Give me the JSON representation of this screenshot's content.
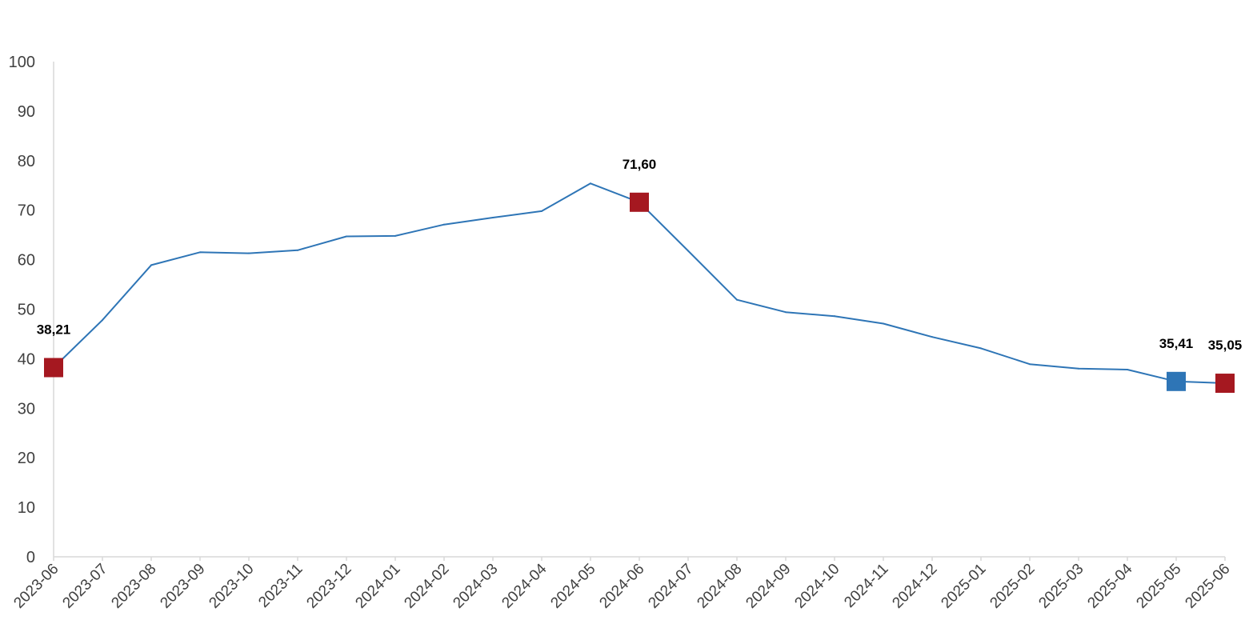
{
  "chart_data": {
    "type": "line",
    "x": [
      "2023-06",
      "2023-07",
      "2023-08",
      "2023-09",
      "2023-10",
      "2023-11",
      "2023-12",
      "2024-01",
      "2024-02",
      "2024-03",
      "2024-04",
      "2024-05",
      "2024-06",
      "2024-07",
      "2024-08",
      "2024-09",
      "2024-10",
      "2024-11",
      "2024-12",
      "2025-01",
      "2025-02",
      "2025-03",
      "2025-04",
      "2025-05",
      "2025-06"
    ],
    "series": [
      {
        "name": "",
        "values": [
          38.21,
          47.8,
          58.9,
          61.5,
          61.3,
          61.9,
          64.7,
          64.8,
          67.1,
          68.5,
          69.8,
          75.4,
          71.6,
          61.8,
          51.9,
          49.4,
          48.6,
          47.1,
          44.4,
          42.1,
          38.9,
          38.0,
          37.8,
          35.41,
          35.05
        ]
      }
    ],
    "ylim": [
      0,
      100
    ],
    "yticks": [
      0,
      10,
      20,
      30,
      40,
      50,
      60,
      70,
      80,
      90,
      100
    ],
    "grid": false,
    "legend": "none",
    "title": "",
    "xlabel": "",
    "ylabel": "",
    "highlights": [
      {
        "x": "2023-06",
        "label": "38,21",
        "color": "#A51820"
      },
      {
        "x": "2024-06",
        "label": "71,60",
        "color": "#A51820"
      },
      {
        "x": "2025-05",
        "label": "35,41",
        "color": "#2E75B6"
      },
      {
        "x": "2025-06",
        "label": "35,05",
        "color": "#A51820"
      }
    ],
    "colors": {
      "line": "#2E75B6",
      "axis": "#D9D9D9",
      "tick_text": "#404040"
    }
  }
}
